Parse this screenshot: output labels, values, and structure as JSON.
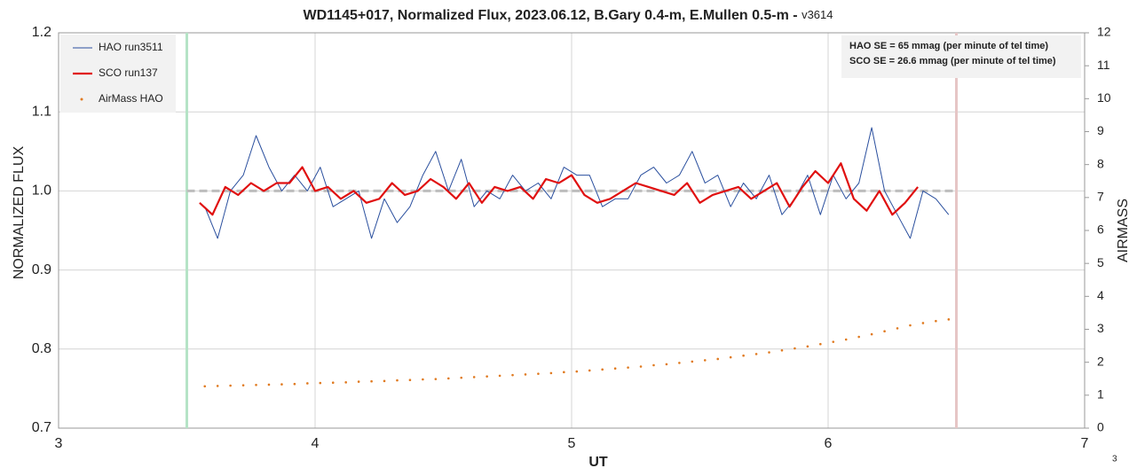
{
  "chart_data": {
    "type": "line",
    "title": "WD1145+017, Normalized Flux, 2023.06.12, B.Gary 0.4-m, E.Mullen 0.5-m - ",
    "subtitle": "v3614",
    "x_label": "UT",
    "y_label": "NORMALIZED FLUX",
    "y2_label": "AIRMASS",
    "xlim": [
      3,
      7
    ],
    "xticks": [
      3,
      4,
      5,
      6,
      7
    ],
    "ylim": [
      0.7,
      1.2
    ],
    "yticks": [
      0.7,
      0.8,
      0.9,
      {
        "value": 1,
        "label": "1.0"
      },
      1.1,
      1.2
    ],
    "y2lim": [
      0,
      12
    ],
    "y2ticks": [
      0,
      1,
      2,
      3,
      4,
      5,
      6,
      7,
      8,
      9,
      10,
      11,
      12
    ],
    "grid": true,
    "legend": "upper left",
    "annotations": [
      "HAO SE  = 65 mmag (per minute of tel time)",
      "SCO SE  = 26.6 mmag (per minute of tel time)"
    ],
    "vlines": [
      {
        "x": 3.5,
        "color": "#b5e3c6"
      },
      {
        "x": 6.5,
        "color": "#e6c6c6"
      }
    ],
    "hline": {
      "y": 1,
      "xrange": [
        3.5,
        6.5
      ],
      "color": "#bdbdbd"
    },
    "page_number": "3",
    "series": [
      {
        "name": "HAO run3511",
        "color": "#2a4f9e",
        "style": "line",
        "width": 1,
        "x": [
          3.57,
          3.62,
          3.67,
          3.72,
          3.77,
          3.82,
          3.87,
          3.92,
          3.97,
          4.02,
          4.07,
          4.12,
          4.17,
          4.22,
          4.27,
          4.32,
          4.37,
          4.42,
          4.47,
          4.52,
          4.57,
          4.62,
          4.67,
          4.72,
          4.77,
          4.82,
          4.87,
          4.92,
          4.97,
          5.02,
          5.07,
          5.12,
          5.17,
          5.22,
          5.27,
          5.32,
          5.37,
          5.42,
          5.47,
          5.52,
          5.57,
          5.62,
          5.67,
          5.72,
          5.77,
          5.82,
          5.87,
          5.92,
          5.97,
          6.02,
          6.07,
          6.12,
          6.17,
          6.22,
          6.27,
          6.32,
          6.37,
          6.42,
          6.47
        ],
        "values": [
          0.98,
          0.94,
          1.0,
          1.02,
          1.07,
          1.03,
          1.0,
          1.02,
          1.0,
          1.03,
          0.98,
          0.99,
          1.0,
          0.94,
          0.99,
          0.96,
          0.98,
          1.02,
          1.05,
          1.0,
          1.04,
          0.98,
          1.0,
          0.99,
          1.02,
          1.0,
          1.01,
          0.99,
          1.03,
          1.02,
          1.02,
          0.98,
          0.99,
          0.99,
          1.02,
          1.03,
          1.01,
          1.02,
          1.05,
          1.01,
          1.02,
          0.98,
          1.01,
          0.99,
          1.02,
          0.97,
          0.99,
          1.02,
          0.97,
          1.02,
          0.99,
          1.01,
          1.08,
          1.0,
          0.97,
          0.94,
          1.0,
          0.99,
          0.97
        ]
      },
      {
        "name": "SCO run137",
        "color": "#e01010",
        "style": "line",
        "width": 2.2,
        "x": [
          3.55,
          3.6,
          3.65,
          3.7,
          3.75,
          3.8,
          3.85,
          3.9,
          3.95,
          4.0,
          4.05,
          4.1,
          4.15,
          4.2,
          4.25,
          4.3,
          4.35,
          4.4,
          4.45,
          4.5,
          4.55,
          4.6,
          4.65,
          4.7,
          4.75,
          4.8,
          4.85,
          4.9,
          4.95,
          5.0,
          5.05,
          5.1,
          5.15,
          5.2,
          5.25,
          5.3,
          5.35,
          5.4,
          5.45,
          5.5,
          5.55,
          5.6,
          5.65,
          5.7,
          5.75,
          5.8,
          5.85,
          5.9,
          5.95,
          6.0,
          6.05,
          6.1,
          6.15,
          6.2,
          6.25,
          6.3,
          6.35
        ],
        "values": [
          0.985,
          0.97,
          1.005,
          0.995,
          1.01,
          1.0,
          1.01,
          1.01,
          1.03,
          1.0,
          1.005,
          0.99,
          1.0,
          0.985,
          0.99,
          1.01,
          0.995,
          1.0,
          1.015,
          1.005,
          0.99,
          1.01,
          0.985,
          1.005,
          1.0,
          1.005,
          0.99,
          1.015,
          1.01,
          1.02,
          0.995,
          0.985,
          0.99,
          1.0,
          1.01,
          1.005,
          1.0,
          0.995,
          1.01,
          0.985,
          0.995,
          1.0,
          1.005,
          0.99,
          1.0,
          1.01,
          0.98,
          1.005,
          1.025,
          1.01,
          1.035,
          0.99,
          0.975,
          1.0,
          0.97,
          0.985,
          1.005
        ]
      },
      {
        "name": "AirMass HAO",
        "color": "#e07a20",
        "style": "dots",
        "axis": "y2",
        "x": [
          3.57,
          3.62,
          3.67,
          3.72,
          3.77,
          3.82,
          3.87,
          3.92,
          3.97,
          4.02,
          4.07,
          4.12,
          4.17,
          4.22,
          4.27,
          4.32,
          4.37,
          4.42,
          4.47,
          4.52,
          4.57,
          4.62,
          4.67,
          4.72,
          4.77,
          4.82,
          4.87,
          4.92,
          4.97,
          5.02,
          5.07,
          5.12,
          5.17,
          5.22,
          5.27,
          5.32,
          5.37,
          5.42,
          5.47,
          5.52,
          5.57,
          5.62,
          5.67,
          5.72,
          5.77,
          5.82,
          5.87,
          5.92,
          5.97,
          6.02,
          6.07,
          6.12,
          6.17,
          6.22,
          6.27,
          6.32,
          6.37,
          6.42,
          6.47
        ],
        "values": [
          1.27,
          1.28,
          1.29,
          1.3,
          1.31,
          1.32,
          1.33,
          1.34,
          1.36,
          1.37,
          1.38,
          1.39,
          1.41,
          1.42,
          1.43,
          1.45,
          1.46,
          1.48,
          1.49,
          1.51,
          1.53,
          1.55,
          1.57,
          1.59,
          1.61,
          1.63,
          1.65,
          1.67,
          1.7,
          1.72,
          1.75,
          1.78,
          1.81,
          1.84,
          1.87,
          1.91,
          1.94,
          1.98,
          2.02,
          2.06,
          2.1,
          2.15,
          2.2,
          2.25,
          2.3,
          2.36,
          2.42,
          2.48,
          2.55,
          2.62,
          2.69,
          2.77,
          2.85,
          2.94,
          3.03,
          3.12,
          3.19,
          3.25,
          3.3
        ]
      }
    ]
  }
}
